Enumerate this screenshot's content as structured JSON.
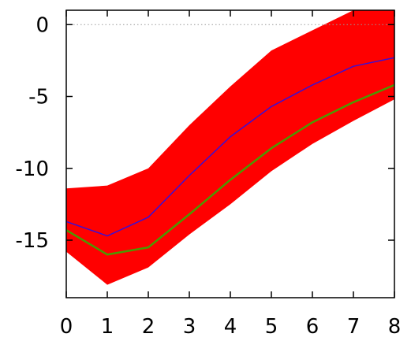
{
  "chart_data": {
    "type": "area",
    "x": [
      0,
      1,
      2,
      3,
      4,
      5,
      6,
      7,
      8
    ],
    "xlim": [
      0,
      8
    ],
    "ylim": [
      -19,
      1
    ],
    "xticks": [
      0,
      1,
      2,
      3,
      4,
      5,
      6,
      7,
      8
    ],
    "yticks": [
      0,
      -5,
      -10,
      -15
    ],
    "xtick_labels": [
      "0",
      "1",
      "2",
      "3",
      "4",
      "5",
      "6",
      "7",
      "8"
    ],
    "ytick_labels": [
      "0",
      "-5",
      "-10",
      "-15"
    ],
    "title": "",
    "xlabel": "",
    "ylabel": "",
    "grid": false,
    "reference_line": {
      "y": 0,
      "style": "dotted"
    },
    "band": {
      "upper": [
        -11.4,
        -11.2,
        -10.0,
        -7.0,
        -4.3,
        -1.8,
        -0.4,
        1.0,
        1.0
      ],
      "lower": [
        -15.8,
        -18.1,
        -16.9,
        -14.6,
        -12.5,
        -10.2,
        -8.3,
        -6.7,
        -5.2
      ],
      "color": "#ff0000"
    },
    "series": [
      {
        "values": [
          -13.7,
          -14.7,
          -13.4,
          -10.5,
          -7.8,
          -5.7,
          -4.2,
          -2.9,
          -2.3
        ],
        "color": "#3a0fd6"
      },
      {
        "values": [
          -14.3,
          -16.0,
          -15.5,
          -13.2,
          -10.8,
          -8.6,
          -6.8,
          -5.4,
          -4.2
        ],
        "color": "#4a9a00"
      }
    ]
  }
}
